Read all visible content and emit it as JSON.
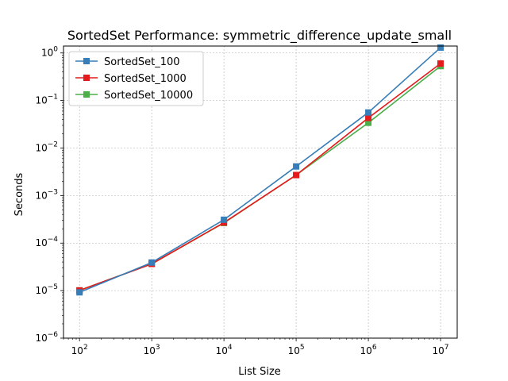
{
  "chart_data": {
    "type": "line",
    "title": "SortedSet Performance: symmetric_difference_update_small",
    "xlabel": "List Size",
    "ylabel": "Seconds",
    "xscale": "log",
    "yscale": "log",
    "xlim": [
      60,
      17000000
    ],
    "ylim": [
      1e-06,
      1.4
    ],
    "grid": true,
    "legend_position": "top-left",
    "x": [
      100,
      1000,
      10000,
      100000,
      1000000,
      10000000
    ],
    "x_ticks": [
      {
        "value": 100,
        "base": "10",
        "exp": "2"
      },
      {
        "value": 1000,
        "base": "10",
        "exp": "3"
      },
      {
        "value": 10000,
        "base": "10",
        "exp": "4"
      },
      {
        "value": 100000,
        "base": "10",
        "exp": "5"
      },
      {
        "value": 1000000,
        "base": "10",
        "exp": "6"
      },
      {
        "value": 10000000,
        "base": "10",
        "exp": "7"
      }
    ],
    "y_ticks": [
      {
        "value": 1e-06,
        "base": "10",
        "exp": "−6"
      },
      {
        "value": 1e-05,
        "base": "10",
        "exp": "−5"
      },
      {
        "value": 0.0001,
        "base": "10",
        "exp": "−4"
      },
      {
        "value": 0.001,
        "base": "10",
        "exp": "−3"
      },
      {
        "value": 0.01,
        "base": "10",
        "exp": "−2"
      },
      {
        "value": 0.1,
        "base": "10",
        "exp": "−1"
      },
      {
        "value": 1,
        "base": "10",
        "exp": "0"
      }
    ],
    "series": [
      {
        "name": "SortedSet_100",
        "color": "#377eb8",
        "values": [
          9.2e-06,
          3.9e-05,
          0.00031,
          0.0041,
          0.056,
          1.3
        ]
      },
      {
        "name": "SortedSet_1000",
        "color": "#e41a1c",
        "values": [
          1.01e-05,
          3.65e-05,
          0.00027,
          0.0027,
          0.043,
          0.6
        ]
      },
      {
        "name": "SortedSet_10000",
        "color": "#4daf4a",
        "values": [
          1.01e-05,
          3.65e-05,
          0.000265,
          0.0027,
          0.034,
          0.53
        ]
      }
    ]
  }
}
